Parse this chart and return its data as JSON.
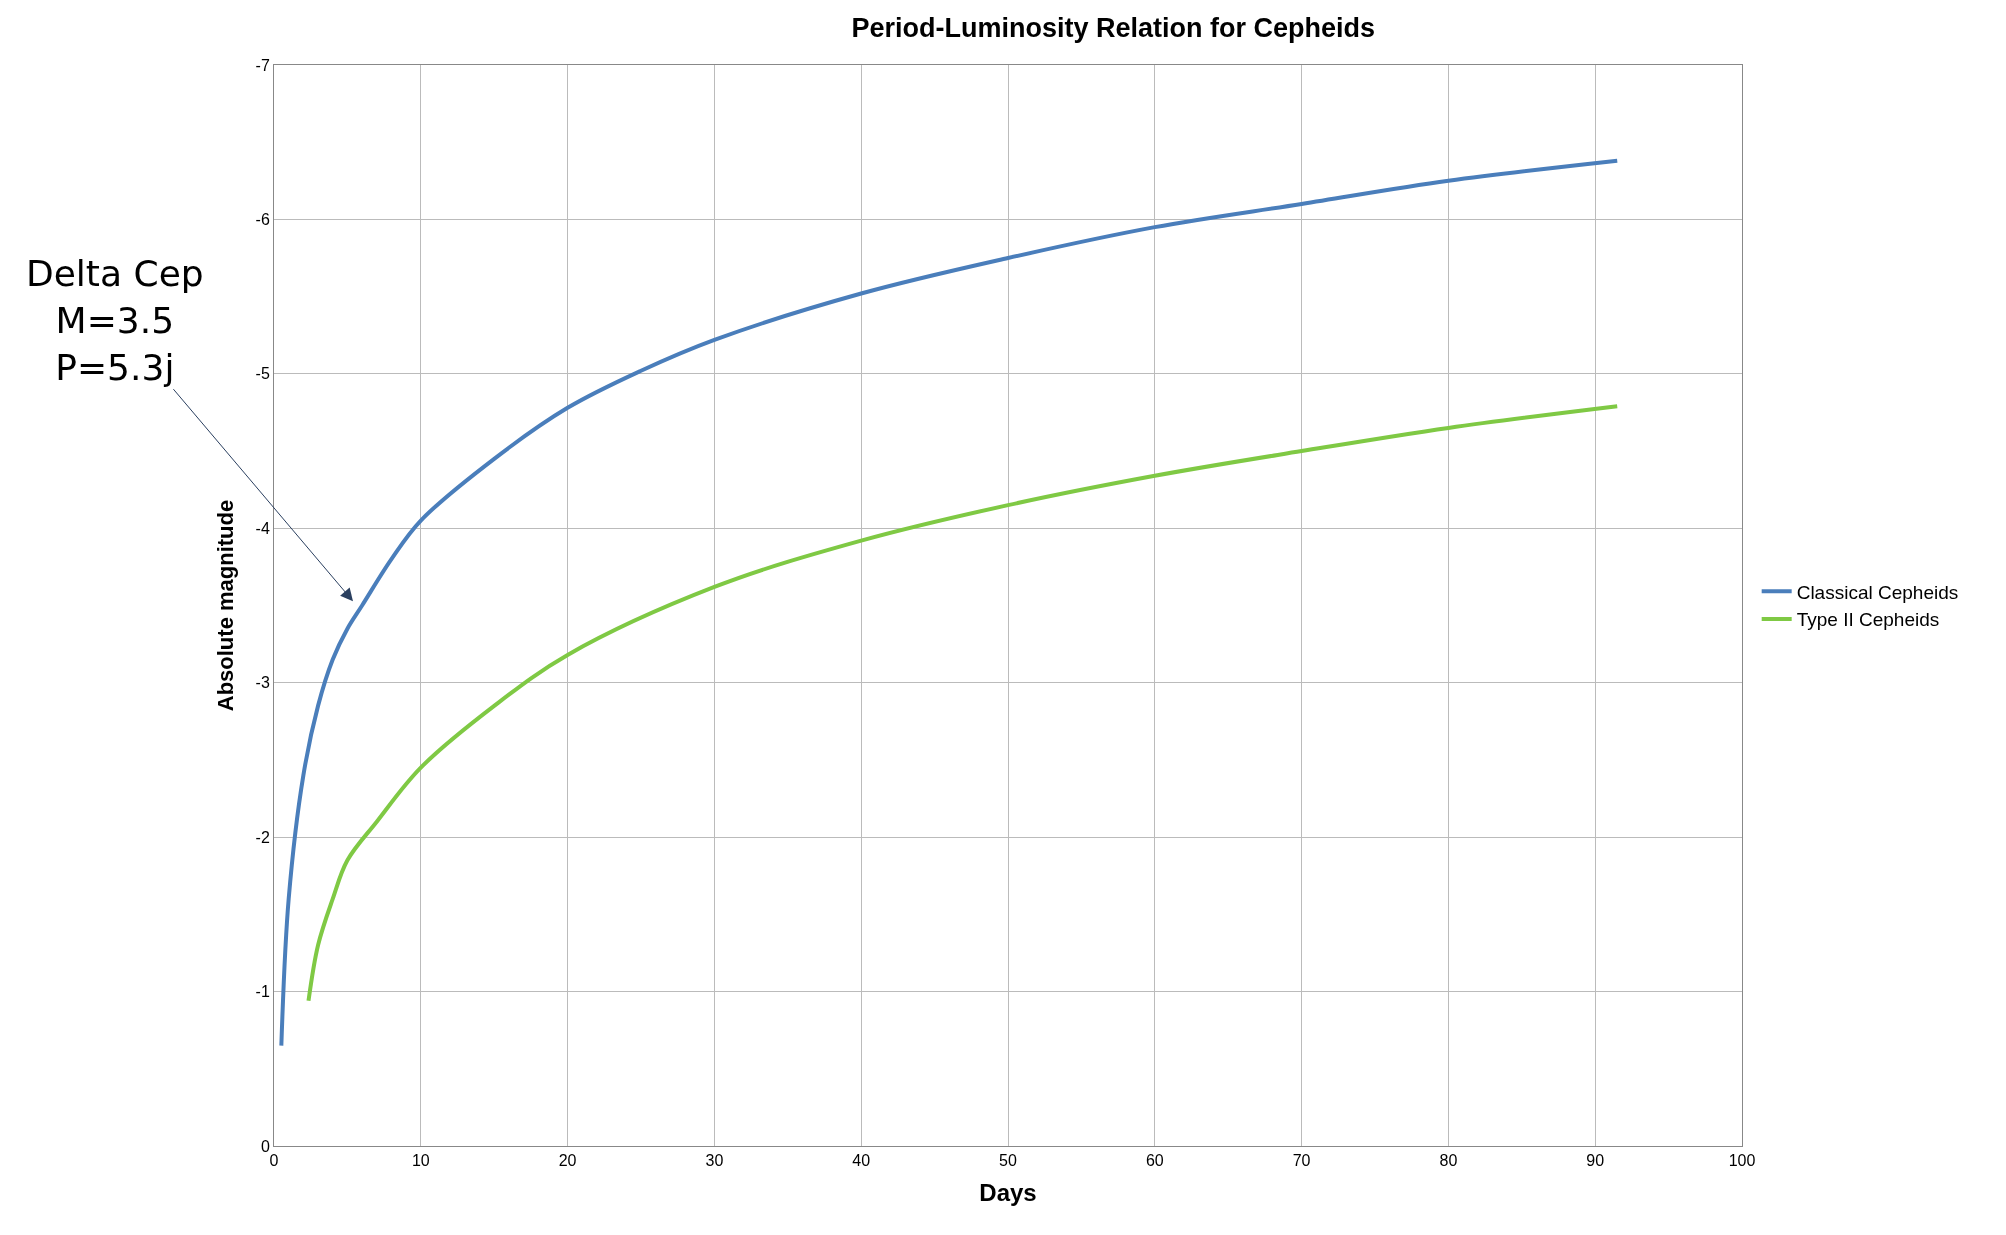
{
  "chart_data": {
    "type": "line",
    "title": "Period-Luminosity Relation for Cepheids",
    "xlabel": "Days",
    "ylabel": "Absolute magnitude",
    "series": [
      {
        "name": "Classical Cepheids",
        "color": "#4a7ebb",
        "x": [
          0.5,
          1,
          2,
          3,
          4,
          5,
          6,
          8,
          10,
          15,
          20,
          25,
          30,
          40,
          50,
          60,
          70,
          80,
          91.5
        ],
        "values": [
          -0.65,
          -1.6,
          -2.4,
          -2.85,
          -3.15,
          -3.35,
          -3.5,
          -3.8,
          -4.05,
          -4.45,
          -4.78,
          -5.02,
          -5.22,
          -5.52,
          -5.75,
          -5.95,
          -6.1,
          -6.25,
          -6.38
        ]
      },
      {
        "name": "Type II Cepheids",
        "color": "#7fc944",
        "x": [
          2.35,
          3,
          4,
          5,
          7,
          10,
          15,
          20,
          30,
          40,
          50,
          60,
          70,
          80,
          91.5
        ],
        "values": [
          -0.94,
          -1.3,
          -1.6,
          -1.85,
          -2.1,
          -2.45,
          -2.85,
          -3.18,
          -3.62,
          -3.92,
          -4.15,
          -4.34,
          -4.5,
          -4.65,
          -4.79
        ]
      }
    ],
    "annotations": [
      "Delta Cep\nM=3.5\nP=5.3j"
    ],
    "xlim": [
      0,
      100
    ],
    "xticks": [
      0,
      10,
      20,
      30,
      40,
      50,
      60,
      70,
      80,
      90,
      100
    ],
    "ylim": [
      0,
      -7
    ],
    "yticks": [
      0,
      -1,
      -2,
      -3,
      -4,
      -5,
      -6,
      -7
    ],
    "grid": true,
    "legend": "right",
    "marker": "none",
    "line_style": "solid"
  }
}
